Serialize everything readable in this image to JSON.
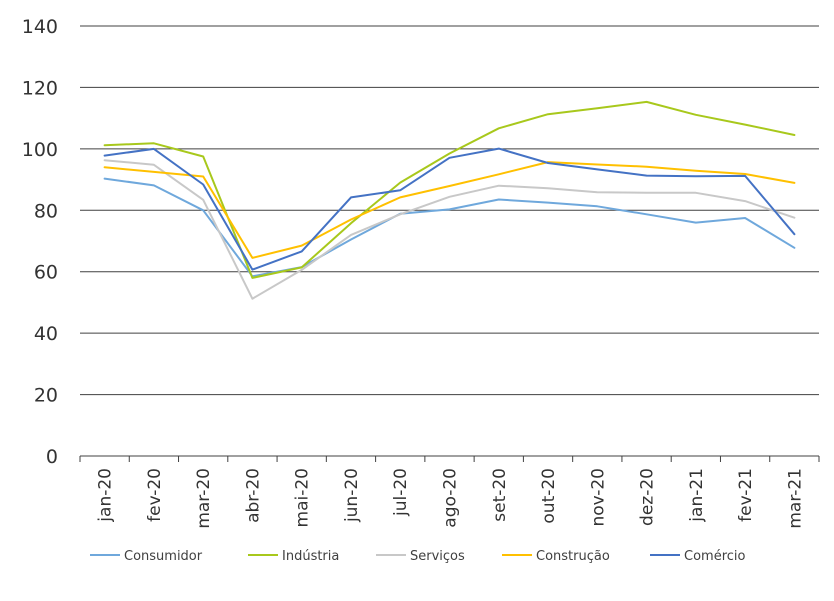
{
  "chart_data": {
    "type": "line",
    "categories": [
      "jan-20",
      "fev-20",
      "mar-20",
      "abr-20",
      "mai-20",
      "jun-20",
      "jul-20",
      "ago-20",
      "set-20",
      "out-20",
      "nov-20",
      "dez-20",
      "jan-21",
      "fev-21",
      "mar-21"
    ],
    "ylim": [
      0,
      140
    ],
    "yticks": [
      "0",
      "20",
      "40",
      "60",
      "80",
      "100",
      "120",
      "140"
    ],
    "grid": true,
    "legend_position": "bottom",
    "series": [
      {
        "name": "Consumidor",
        "color": "#6fa8dc",
        "values": [
          90.3,
          88.1,
          80.0,
          58.5,
          61.5,
          70.5,
          78.9,
          80.3,
          83.5,
          82.5,
          81.3,
          78.7,
          76.0,
          77.5,
          67.8
        ]
      },
      {
        "name": "Indústria",
        "color": "#a8c81c",
        "values": [
          101.2,
          101.8,
          97.5,
          58.0,
          61.4,
          75.8,
          89.0,
          98.5,
          106.7,
          111.3,
          113.2,
          115.3,
          111.1,
          107.9,
          104.5
        ]
      },
      {
        "name": "Serviços",
        "color": "#c8c8c8",
        "values": [
          96.3,
          94.8,
          83.4,
          51.2,
          60.6,
          72.0,
          78.7,
          84.4,
          88.0,
          87.2,
          85.9,
          85.7,
          85.7,
          83.0,
          77.6
        ]
      },
      {
        "name": "Construção",
        "color": "#ffc000",
        "values": [
          94.0,
          92.5,
          91.0,
          64.5,
          68.5,
          77.0,
          84.2,
          87.9,
          91.7,
          95.7,
          94.9,
          94.2,
          92.9,
          91.8,
          88.9
        ]
      },
      {
        "name": "Comércio",
        "color": "#4472c4",
        "values": [
          97.8,
          100.0,
          88.4,
          60.7,
          66.6,
          84.2,
          86.5,
          97.1,
          100.1,
          95.4,
          93.3,
          91.3,
          91.1,
          91.2,
          72.2
        ]
      }
    ]
  }
}
